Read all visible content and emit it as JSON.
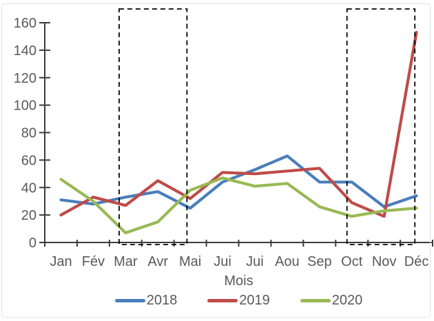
{
  "chart_data": {
    "type": "line",
    "title": "",
    "xlabel": "Mois",
    "ylabel": "",
    "ylim": [
      0,
      160
    ],
    "yticks": [
      0,
      20,
      40,
      60,
      80,
      100,
      120,
      140,
      160
    ],
    "categories": [
      "Jan",
      "Fév",
      "Mar",
      "Avr",
      "Mai",
      "Jui",
      "Jui",
      "Aou",
      "Sep",
      "Oct",
      "Nov",
      "Déc"
    ],
    "grid": false,
    "legend_position": "bottom",
    "series": [
      {
        "name": "2018",
        "color": "#4A7EBB",
        "values": [
          31,
          28,
          33,
          37,
          25,
          44,
          53,
          63,
          44,
          44,
          26,
          34
        ]
      },
      {
        "name": "2019",
        "color": "#BE4B48",
        "values": [
          20,
          33,
          27,
          45,
          32,
          51,
          50,
          52,
          54,
          29,
          19,
          153
        ]
      },
      {
        "name": "2020",
        "color": "#98B954",
        "values": [
          46,
          30,
          7,
          15,
          38,
          47,
          41,
          43,
          26,
          19,
          23,
          25
        ]
      }
    ],
    "annotations": [
      {
        "type": "dashed-box",
        "from_category": 1.8,
        "to_category": 3.9
      },
      {
        "type": "dashed-box",
        "from_category": 8.85,
        "to_category": 10.95
      }
    ]
  },
  "style": {
    "axis_color": "#3b3b3b",
    "label_color": "#595959",
    "annotation_color": "#000000",
    "frame_border_color": "#e2e2e2",
    "background": "#ffffff"
  }
}
